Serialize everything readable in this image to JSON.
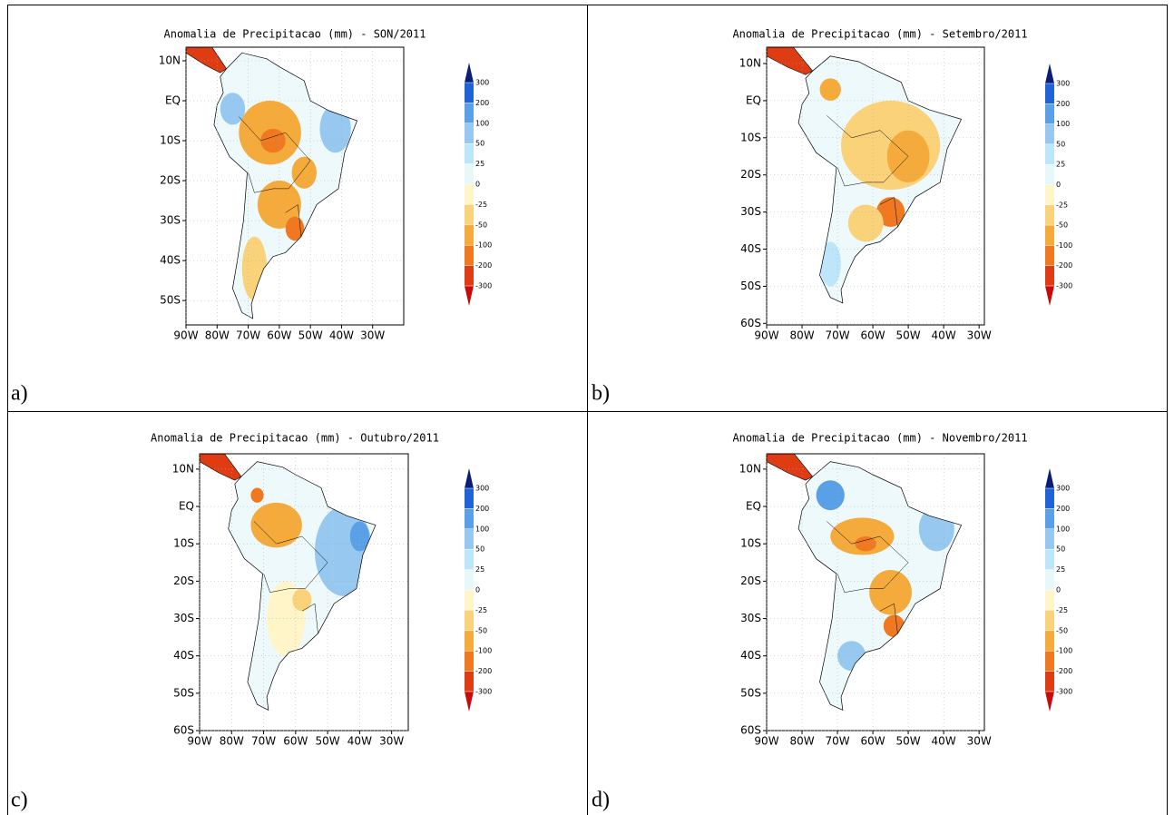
{
  "panels": [
    {
      "title": "Anomalia de Precipitacao (mm) - SON/2011",
      "letter": "a)",
      "lat_ticks": [
        {
          "value": 10,
          "label": "10N"
        },
        {
          "value": 0,
          "label": "EQ"
        },
        {
          "value": -10,
          "label": "10S"
        },
        {
          "value": -20,
          "label": "20S"
        },
        {
          "value": -30,
          "label": "30S"
        },
        {
          "value": -40,
          "label": "40S"
        },
        {
          "value": -50,
          "label": "50S"
        }
      ],
      "lon_ticks": [
        {
          "value": -90,
          "label": "90W"
        },
        {
          "value": -80,
          "label": "80W"
        },
        {
          "value": -70,
          "label": "70W"
        },
        {
          "value": -60,
          "label": "60W"
        },
        {
          "value": -50,
          "label": "50W"
        },
        {
          "value": -40,
          "label": "40W"
        },
        {
          "value": -30,
          "label": "30W"
        }
      ]
    },
    {
      "title": "Anomalia de Precipitacao (mm) - Setembro/2011",
      "letter": "b)",
      "lat_ticks": [
        {
          "value": 10,
          "label": "10N"
        },
        {
          "value": 0,
          "label": "EQ"
        },
        {
          "value": -10,
          "label": "10S"
        },
        {
          "value": -20,
          "label": "20S"
        },
        {
          "value": -30,
          "label": "30S"
        },
        {
          "value": -40,
          "label": "40S"
        },
        {
          "value": -50,
          "label": "50S"
        },
        {
          "value": -60,
          "label": "60S"
        }
      ],
      "lon_ticks": [
        {
          "value": -90,
          "label": "90W"
        },
        {
          "value": -80,
          "label": "80W"
        },
        {
          "value": -70,
          "label": "70W"
        },
        {
          "value": -60,
          "label": "60W"
        },
        {
          "value": -50,
          "label": "50W"
        },
        {
          "value": -40,
          "label": "40W"
        },
        {
          "value": -30,
          "label": "30W"
        }
      ]
    },
    {
      "title": "Anomalia de Precipitacao (mm) - Outubro/2011",
      "letter": "c)",
      "lat_ticks": [
        {
          "value": 10,
          "label": "10N"
        },
        {
          "value": 0,
          "label": "EQ"
        },
        {
          "value": -10,
          "label": "10S"
        },
        {
          "value": -20,
          "label": "20S"
        },
        {
          "value": -30,
          "label": "30S"
        },
        {
          "value": -40,
          "label": "40S"
        },
        {
          "value": -50,
          "label": "50S"
        },
        {
          "value": -60,
          "label": "60S"
        }
      ],
      "lon_ticks": [
        {
          "value": -90,
          "label": "90W"
        },
        {
          "value": -80,
          "label": "80W"
        },
        {
          "value": -70,
          "label": "70W"
        },
        {
          "value": -60,
          "label": "60W"
        },
        {
          "value": -50,
          "label": "50W"
        },
        {
          "value": -40,
          "label": "40W"
        },
        {
          "value": -30,
          "label": "30W"
        }
      ]
    },
    {
      "title": "Anomalia de Precipitacao (mm) - Novembro/2011",
      "letter": "d)",
      "lat_ticks": [
        {
          "value": 10,
          "label": "10N"
        },
        {
          "value": 0,
          "label": "EQ"
        },
        {
          "value": -10,
          "label": "10S"
        },
        {
          "value": -20,
          "label": "20S"
        },
        {
          "value": -30,
          "label": "30S"
        },
        {
          "value": -40,
          "label": "40S"
        },
        {
          "value": -50,
          "label": "50S"
        },
        {
          "value": -60,
          "label": "60S"
        }
      ],
      "lon_ticks": [
        {
          "value": -90,
          "label": "90W"
        },
        {
          "value": -80,
          "label": "80W"
        },
        {
          "value": -70,
          "label": "70W"
        },
        {
          "value": -60,
          "label": "60W"
        },
        {
          "value": -50,
          "label": "50W"
        },
        {
          "value": -40,
          "label": "40W"
        },
        {
          "value": -30,
          "label": "30W"
        }
      ]
    }
  ],
  "colorbar_levels": [
    300,
    200,
    100,
    50,
    25,
    0,
    -25,
    -50,
    -100,
    -200,
    -300
  ]
}
